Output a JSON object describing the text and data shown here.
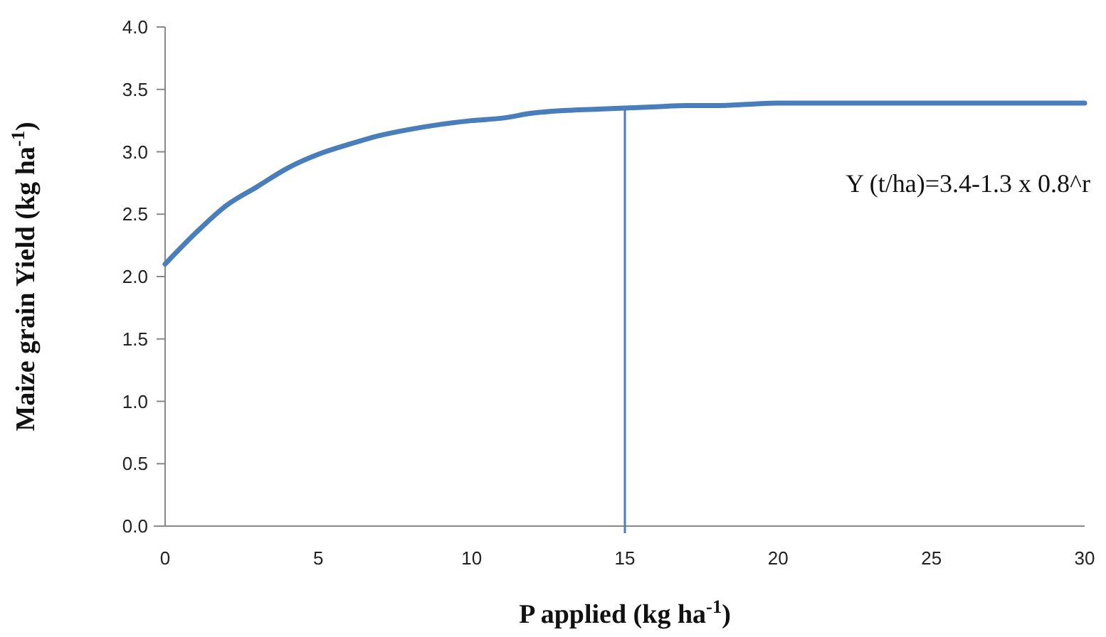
{
  "chart_data": {
    "type": "line",
    "xlabel": "P applied (kg ha$^{-1}$)",
    "ylabel": "Maize grain Yield (kg ha$^{-1}$)",
    "x": [
      0,
      1,
      2,
      3,
      4,
      5,
      6,
      7,
      8,
      9,
      10,
      11,
      12,
      13,
      14,
      15,
      16,
      17,
      18,
      19,
      20,
      22,
      24,
      26,
      28,
      30
    ],
    "series": [
      {
        "color": "#4a7ebb",
        "values": [
          2.1,
          2.35,
          2.57,
          2.72,
          2.87,
          2.98,
          3.06,
          3.13,
          3.18,
          3.22,
          3.25,
          3.27,
          3.31,
          3.33,
          3.34,
          3.35,
          3.36,
          3.37,
          3.37,
          3.38,
          3.39,
          3.39,
          3.39,
          3.39,
          3.39,
          3.39
        ]
      }
    ],
    "xlim": [
      0,
      30
    ],
    "xticks": [
      0,
      5,
      10,
      15,
      20,
      25,
      30
    ],
    "ylim": [
      0,
      4
    ],
    "yticks": [
      {
        "value": 0,
        "label": "0.0"
      },
      {
        "value": 0.5,
        "label": "0.5"
      },
      {
        "value": 1,
        "label": "1.0"
      },
      {
        "value": 1.5,
        "label": "1.5"
      },
      {
        "value": 2,
        "label": "2.0"
      },
      {
        "value": 2.5,
        "label": "2.5"
      },
      {
        "value": 3,
        "label": "3.0"
      },
      {
        "value": 3.5,
        "label": "3.5"
      },
      {
        "value": 4,
        "label": "4.0"
      }
    ],
    "ref_lines": [
      {
        "axis": "x",
        "value": 15,
        "color": "#4a7ebb"
      }
    ],
    "annotations": [
      "Y (t/ha)=3.4-1.3 x 0.8^r"
    ],
    "grid": false,
    "marker": "none",
    "line_style": "solid"
  }
}
